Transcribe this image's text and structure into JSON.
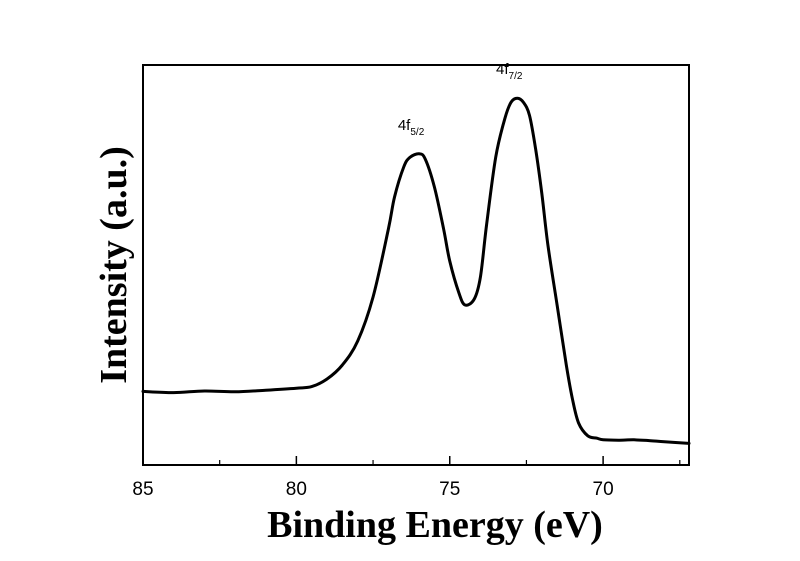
{
  "chart_data": {
    "type": "line",
    "title": "",
    "xlabel": "Binding Energy (eV)",
    "ylabel": "Intensity (a.u.)",
    "xlim": [
      85,
      67.2
    ],
    "x_reversed": true,
    "ylim": [
      0,
      100
    ],
    "y_ticks_shown": false,
    "grid": false,
    "xticks": [
      85,
      80,
      75,
      70
    ],
    "xtick_labels": [
      "85",
      "80",
      "75",
      "70"
    ],
    "series": [
      {
        "x": [
          85,
          84,
          83,
          82,
          81,
          80,
          79.5,
          79,
          78.5,
          78,
          77.5,
          77,
          76.8,
          76.5,
          76.3,
          76,
          75.8,
          75.5,
          75.2,
          75,
          74.7,
          74.5,
          74.2,
          74,
          73.8,
          73.5,
          73.2,
          73,
          72.8,
          72.6,
          72.4,
          72.2,
          72,
          71.8,
          71.5,
          71.2,
          71,
          70.8,
          70.5,
          70.2,
          70,
          69.5,
          69,
          68.5,
          68,
          67.2
        ],
        "y": [
          18.4,
          18.1,
          18.5,
          18.3,
          18.7,
          19.2,
          19.6,
          21.5,
          25,
          31,
          42,
          59,
          67,
          74.5,
          76.9,
          77.8,
          76.5,
          69.5,
          59,
          51,
          43,
          40,
          41.5,
          47,
          60,
          77,
          86.7,
          90.7,
          91.7,
          90.7,
          87.4,
          79,
          68,
          55,
          40,
          25,
          16.5,
          10.5,
          7.3,
          6.7,
          6.3,
          6.2,
          6.3,
          6.1,
          5.8,
          5.4
        ]
      }
    ],
    "annotations": [
      {
        "base": "4f",
        "sub": "5/2",
        "x": 76,
        "y": 77.8
      },
      {
        "base": "4f",
        "sub": "7/2",
        "x": 72.8,
        "y": 91.7
      }
    ]
  }
}
